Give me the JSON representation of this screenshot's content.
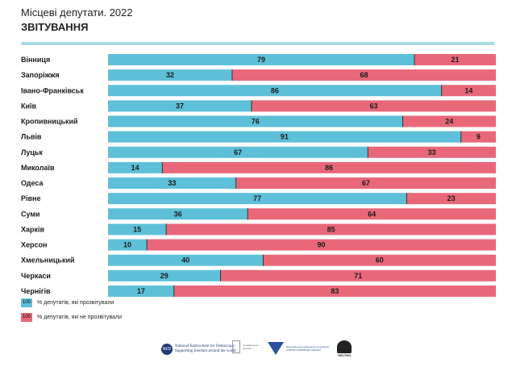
{
  "header": {
    "title": "Місцеві депутати. 2022",
    "subtitle": "ЗВІТУВАННЯ"
  },
  "colors": {
    "reported": "#5ec0d8",
    "not_reported": "#e8687a",
    "accent_line": "#a9dbe9"
  },
  "chart_data": {
    "type": "bar",
    "orientation": "horizontal",
    "stacked": true,
    "categories": [
      "Вінниця",
      "Запоріжжя",
      "Івано-Франківськ",
      "Київ",
      "Кропивницький",
      "Львів",
      "Луцьк",
      "Миколаїв",
      "Одеса",
      "Рівне",
      "Суми",
      "Харків",
      "Херсон",
      "Хмельницький",
      "Черкаси",
      "Чернігів"
    ],
    "series": [
      {
        "name": "% депутатів, які прозвітували",
        "values": [
          79,
          32,
          86,
          37,
          76,
          91,
          67,
          14,
          33,
          77,
          36,
          15,
          10,
          40,
          29,
          17
        ]
      },
      {
        "name": "% депутатів, які не прозвітували",
        "values": [
          21,
          68,
          14,
          63,
          24,
          9,
          33,
          86,
          67,
          23,
          64,
          85,
          90,
          60,
          71,
          83
        ]
      }
    ],
    "xlim": [
      0,
      100
    ],
    "legend_position": "bottom-left",
    "grid": false
  },
  "legend": [
    {
      "swatch": "100",
      "label": "% депутатів, які прозвітували"
    },
    {
      "swatch": "100",
      "label": "% депутатів, які не прозвітували"
    }
  ],
  "logos": {
    "ned_badge": "NED",
    "ned_name": "National Endowment for Democracy",
    "ned_tagline": "Supporting freedom around the world",
    "pv_text": "Громадянська мережа",
    "cvu_text": "Всеукраїнська громадська організація КОМІТЕТ ВИБОРЦІВ УКРАЇНИ",
    "last_text": "ЧЕСТНО"
  }
}
